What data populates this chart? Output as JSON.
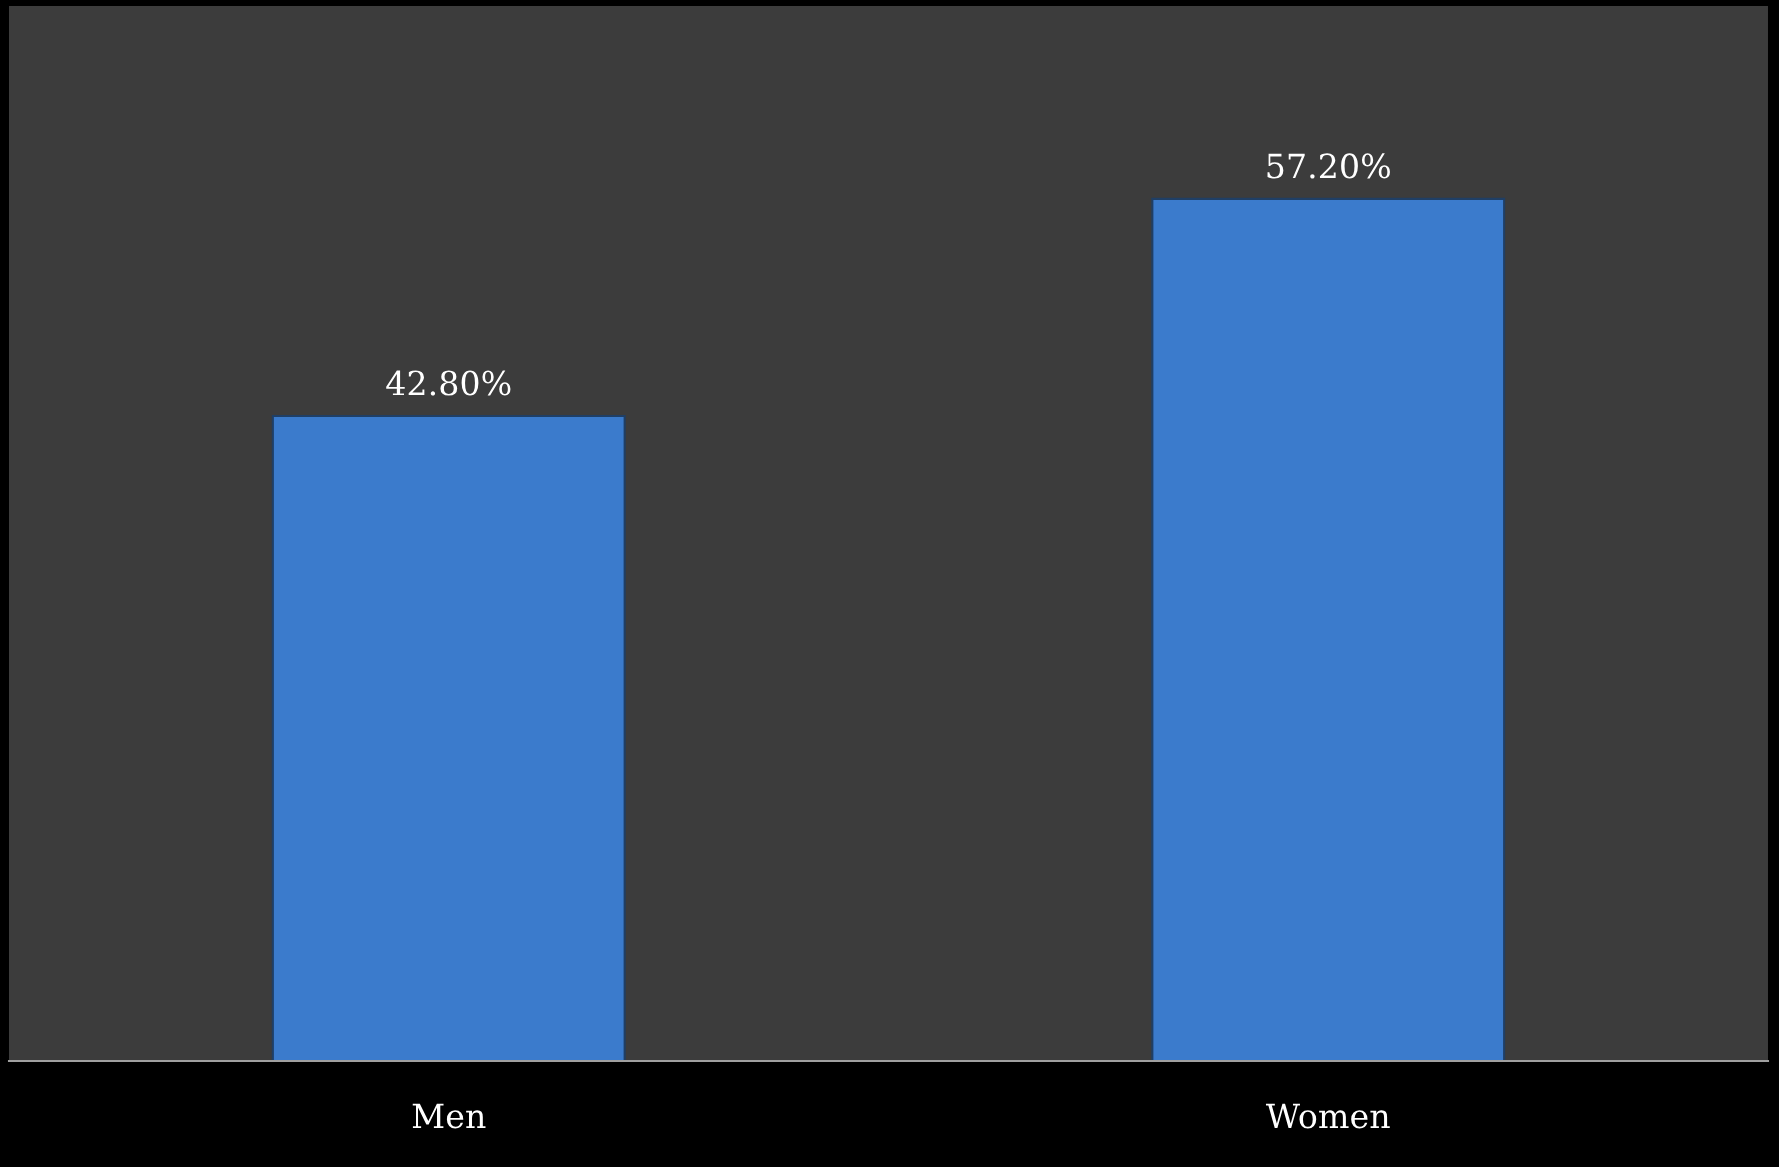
{
  "chart_data": {
    "type": "bar",
    "categories": [
      "Men",
      "Women"
    ],
    "values": [
      42.8,
      57.2
    ],
    "value_labels": [
      "42.80%",
      "57.20%"
    ],
    "color": "#3b7bcc",
    "ylim": [
      0,
      70
    ],
    "tick_labels": "x",
    "grid": false
  }
}
